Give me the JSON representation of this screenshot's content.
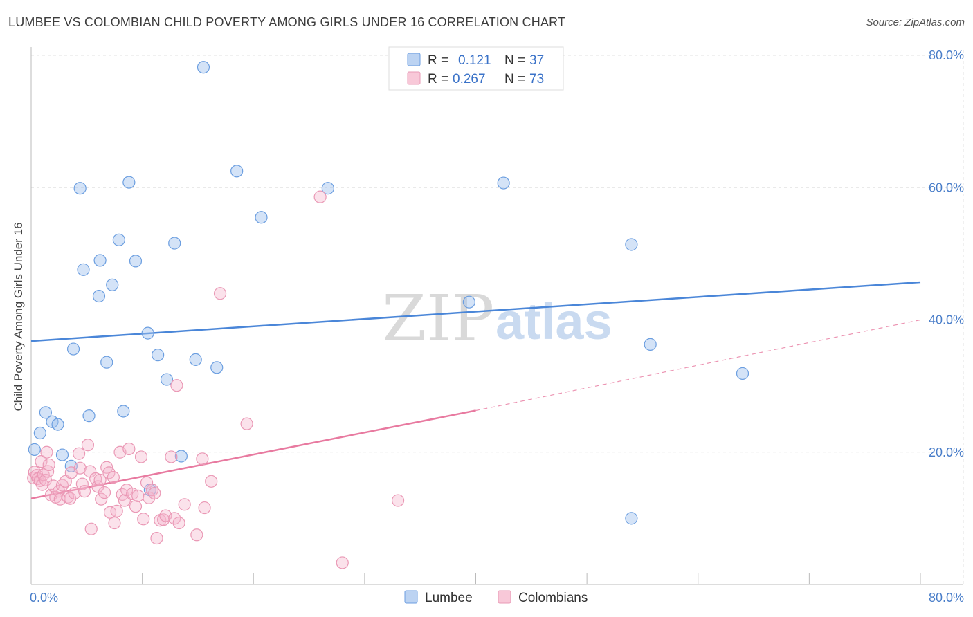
{
  "header": {
    "title": "LUMBEE VS COLOMBIAN CHILD POVERTY AMONG GIRLS UNDER 16 CORRELATION CHART",
    "source": "Source: ZipAtlas.com"
  },
  "watermark": {
    "zip": "ZIP",
    "atlas": "atlas"
  },
  "legend_top": [
    {
      "r_label": "R =",
      "r_value": "0.121",
      "n_label": "N =",
      "n_value": "37"
    },
    {
      "r_label": "R =",
      "r_value": "0.267",
      "n_label": "N =",
      "n_value": "73"
    }
  ],
  "legend_bottom": [
    "Lumbee",
    "Colombians"
  ],
  "chart_data": {
    "type": "scatter",
    "title": "LUMBEE VS COLOMBIAN CHILD POVERTY AMONG GIRLS UNDER 16 CORRELATION CHART",
    "xlabel": "",
    "ylabel": "Child Poverty Among Girls Under 16",
    "xlim": [
      0,
      80
    ],
    "ylim": [
      0,
      80
    ],
    "x_tick_labels": [
      "0.0%",
      "80.0%"
    ],
    "y_tick_labels": [
      {
        "value": 20,
        "label": "20.0%"
      },
      {
        "value": 40,
        "label": "40.0%"
      },
      {
        "value": 60,
        "label": "60.0%"
      },
      {
        "value": 80,
        "label": "80.0%"
      }
    ],
    "grid": true,
    "legend_position": "top-center",
    "colors": {
      "lumbee": "#4a86d8",
      "colombians": "#e87aa0"
    },
    "series": [
      {
        "name": "Lumbee",
        "color": "#4a86d8",
        "trend": {
          "x": [
            0,
            80
          ],
          "y": [
            36.8,
            45.7
          ],
          "dashed": false
        },
        "points": [
          [
            0.3,
            20.4
          ],
          [
            0.8,
            22.9
          ],
          [
            1.3,
            26.0
          ],
          [
            1.9,
            24.6
          ],
          [
            2.4,
            24.2
          ],
          [
            2.8,
            19.6
          ],
          [
            3.6,
            17.9
          ],
          [
            3.8,
            35.6
          ],
          [
            4.4,
            59.9
          ],
          [
            4.7,
            47.6
          ],
          [
            5.2,
            25.5
          ],
          [
            6.1,
            43.6
          ],
          [
            6.2,
            49.0
          ],
          [
            6.8,
            33.6
          ],
          [
            7.3,
            45.3
          ],
          [
            7.9,
            52.1
          ],
          [
            8.3,
            26.2
          ],
          [
            8.8,
            60.8
          ],
          [
            9.4,
            48.9
          ],
          [
            10.5,
            38.0
          ],
          [
            10.7,
            14.3
          ],
          [
            11.4,
            34.7
          ],
          [
            12.2,
            31.0
          ],
          [
            12.9,
            51.6
          ],
          [
            13.5,
            19.4
          ],
          [
            14.8,
            34.0
          ],
          [
            15.5,
            78.2
          ],
          [
            16.7,
            32.8
          ],
          [
            18.5,
            62.5
          ],
          [
            20.7,
            55.5
          ],
          [
            26.7,
            59.9
          ],
          [
            39.4,
            42.7
          ],
          [
            42.5,
            60.7
          ],
          [
            54.0,
            51.4
          ],
          [
            54.0,
            10.0
          ],
          [
            55.7,
            36.3
          ],
          [
            64.0,
            31.9
          ]
        ]
      },
      {
        "name": "Colombians",
        "color": "#e87aa0",
        "trend": {
          "x": [
            0,
            40
          ],
          "y": [
            13.0,
            26.3
          ],
          "x_ext": [
            40,
            80
          ],
          "y_ext": [
            26.3,
            40.0
          ],
          "dashed_ext": true
        },
        "points": [
          [
            0.2,
            16.1
          ],
          [
            0.3,
            17.0
          ],
          [
            0.5,
            16.5
          ],
          [
            0.6,
            16.0
          ],
          [
            0.8,
            15.7
          ],
          [
            0.9,
            18.6
          ],
          [
            1.0,
            15.1
          ],
          [
            1.1,
            16.6
          ],
          [
            1.3,
            15.8
          ],
          [
            1.4,
            20.0
          ],
          [
            1.5,
            17.1
          ],
          [
            1.6,
            18.1
          ],
          [
            1.8,
            13.5
          ],
          [
            2.0,
            14.9
          ],
          [
            2.2,
            13.2
          ],
          [
            2.5,
            14.1
          ],
          [
            2.6,
            12.9
          ],
          [
            2.8,
            15.0
          ],
          [
            3.1,
            15.6
          ],
          [
            3.3,
            13.2
          ],
          [
            3.5,
            13.0
          ],
          [
            3.6,
            16.9
          ],
          [
            3.9,
            13.8
          ],
          [
            4.3,
            19.8
          ],
          [
            4.4,
            17.6
          ],
          [
            4.6,
            15.2
          ],
          [
            4.8,
            14.1
          ],
          [
            5.1,
            21.1
          ],
          [
            5.3,
            17.1
          ],
          [
            5.4,
            8.4
          ],
          [
            5.8,
            16.0
          ],
          [
            6.0,
            14.8
          ],
          [
            6.2,
            15.8
          ],
          [
            6.3,
            12.9
          ],
          [
            6.6,
            13.9
          ],
          [
            6.8,
            17.7
          ],
          [
            7.0,
            16.9
          ],
          [
            7.1,
            10.9
          ],
          [
            7.4,
            16.2
          ],
          [
            7.5,
            9.3
          ],
          [
            7.7,
            11.1
          ],
          [
            8.0,
            20.0
          ],
          [
            8.2,
            13.6
          ],
          [
            8.4,
            12.7
          ],
          [
            8.6,
            14.3
          ],
          [
            8.8,
            20.5
          ],
          [
            9.1,
            13.7
          ],
          [
            9.4,
            11.8
          ],
          [
            9.6,
            13.4
          ],
          [
            9.9,
            19.3
          ],
          [
            10.1,
            9.9
          ],
          [
            10.4,
            15.4
          ],
          [
            10.6,
            13.1
          ],
          [
            10.9,
            14.3
          ],
          [
            11.1,
            13.8
          ],
          [
            11.3,
            7.0
          ],
          [
            11.6,
            9.7
          ],
          [
            11.9,
            9.8
          ],
          [
            12.1,
            10.4
          ],
          [
            12.6,
            19.3
          ],
          [
            12.9,
            10.0
          ],
          [
            13.1,
            30.1
          ],
          [
            13.3,
            9.3
          ],
          [
            13.8,
            12.1
          ],
          [
            14.9,
            7.5
          ],
          [
            15.4,
            19.0
          ],
          [
            15.6,
            11.6
          ],
          [
            16.2,
            15.6
          ],
          [
            17.0,
            44.0
          ],
          [
            19.4,
            24.3
          ],
          [
            26.0,
            58.6
          ],
          [
            28.0,
            3.3
          ],
          [
            33.0,
            12.7
          ]
        ]
      }
    ]
  }
}
